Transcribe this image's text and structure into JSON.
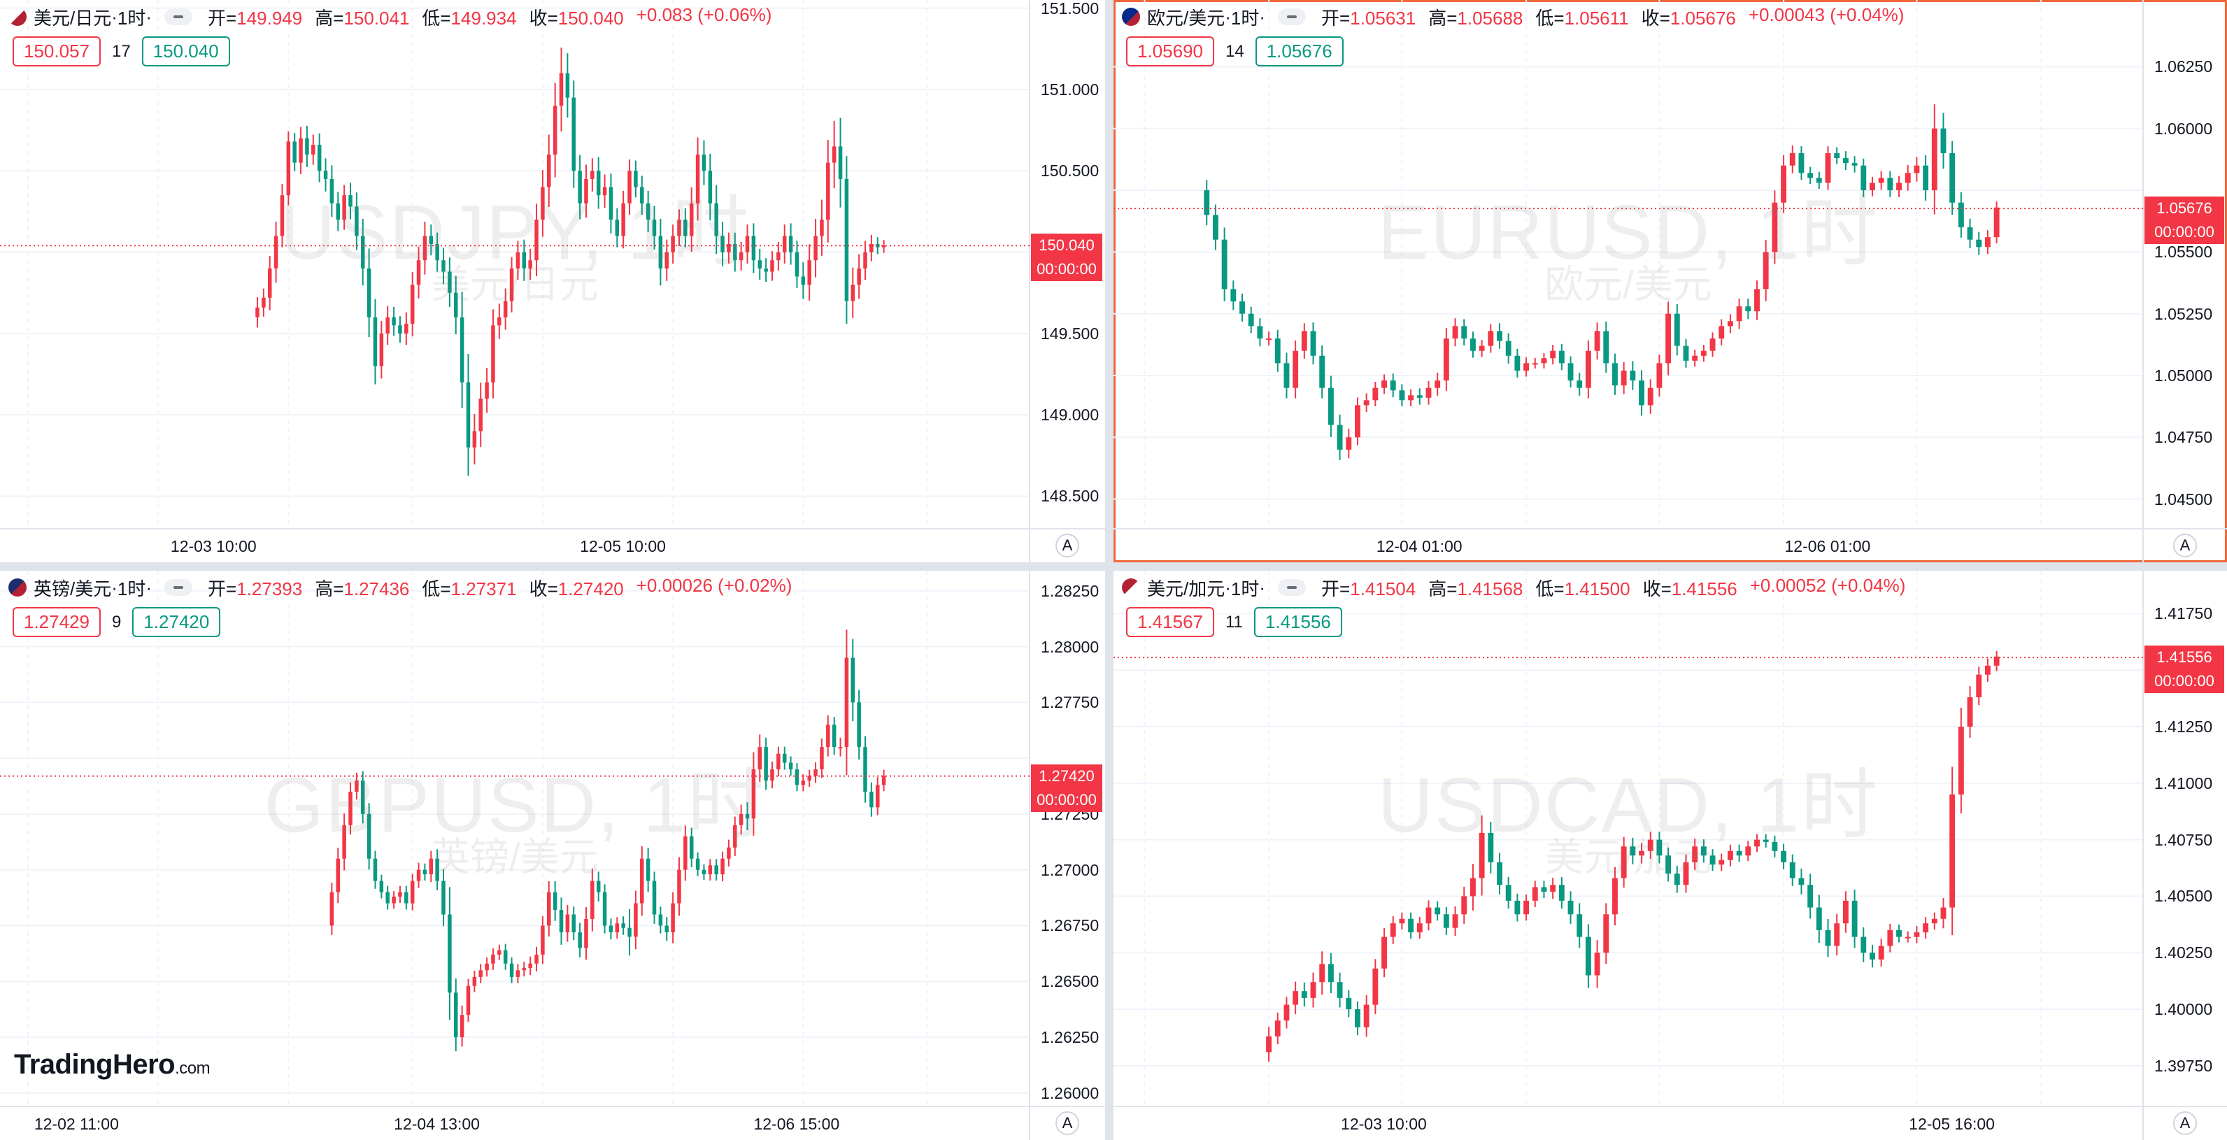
{
  "charts": [
    {
      "id": "usdjpy",
      "name": "美元/日元",
      "interval": "1时",
      "flag": "us-jp-flag",
      "open_label": "开=",
      "open": "149.949",
      "high_label": "高=",
      "high": "150.041",
      "low_label": "低=",
      "low": "149.934",
      "close_label": "收=",
      "close": "150.040",
      "change": "+0.083 (+0.06%)",
      "bid": "150.057",
      "spread": "17",
      "ask": "150.040",
      "watermark": "USDJPY, 1时",
      "watermark_sub": "美元/日元",
      "last_price": "150.040",
      "countdown": "00:00:00",
      "auto_label": "A",
      "chart_data": {
        "type": "candlestick",
        "ylim": [
          148.3,
          151.55
        ],
        "yticks": [
          "148.500",
          "149.000",
          "149.500",
          "150.000",
          "150.500",
          "151.000",
          "151.500"
        ],
        "x_labels": [
          {
            "i": 34,
            "label": "12-03 10:00"
          },
          {
            "i": 100,
            "label": "12-05 10:00"
          }
        ],
        "bars": 166,
        "last_price": 150.04,
        "closes": [
          149.66,
          149.72,
          149.9,
          150.1,
          150.35,
          150.68,
          150.55,
          150.7,
          150.6,
          150.66,
          150.5,
          150.45,
          150.3,
          150.2,
          150.35,
          150.28,
          150.1,
          149.9,
          149.6,
          149.3,
          149.5,
          149.6,
          149.55,
          149.5,
          149.56,
          149.8,
          149.95,
          150.1,
          150.05,
          149.95,
          149.88,
          149.75,
          149.6,
          149.2,
          148.8,
          148.9,
          149.1,
          149.2,
          149.55,
          149.6,
          149.7,
          149.9,
          150.0,
          149.9,
          149.95,
          150.2,
          150.4,
          150.6,
          150.9,
          151.1,
          150.95,
          150.5,
          150.3,
          150.45,
          150.5,
          150.35,
          150.4,
          150.2,
          150.1,
          150.3,
          150.5,
          150.4,
          150.3,
          150.2,
          150.1,
          149.9,
          150.0,
          150.1,
          150.2,
          150.1,
          150.3,
          150.6,
          150.5,
          150.3,
          150.1,
          150.0,
          150.05,
          149.95,
          150.0,
          150.1,
          149.95,
          149.9,
          149.88,
          149.95,
          150.0,
          150.1,
          150.0,
          149.85,
          149.8,
          149.95,
          150.1,
          150.2,
          150.55,
          150.65,
          150.45,
          149.7,
          149.8,
          149.9,
          150.0,
          150.05,
          150.03,
          150.04
        ],
        "range": [
          0.18,
          0.16,
          0.22,
          0.25,
          0.2,
          0.18,
          0.15,
          0.2,
          0.22,
          0.18,
          0.2,
          0.22,
          0.24,
          0.2,
          0.18,
          0.22,
          0.25,
          0.3,
          0.35,
          0.32,
          0.22,
          0.2,
          0.18,
          0.16,
          0.2,
          0.22,
          0.24,
          0.25,
          0.2,
          0.2,
          0.22,
          0.25,
          0.3,
          0.45,
          0.5,
          0.3,
          0.28,
          0.25,
          0.28,
          0.24,
          0.22,
          0.2,
          0.2,
          0.22,
          0.2,
          0.28,
          0.3,
          0.35,
          0.4,
          0.45,
          0.35,
          0.3,
          0.28,
          0.25,
          0.22,
          0.24,
          0.22,
          0.24,
          0.2,
          0.22,
          0.2,
          0.18,
          0.2,
          0.22,
          0.24,
          0.3,
          0.22,
          0.2,
          0.18,
          0.2,
          0.28,
          0.3,
          0.25,
          0.3,
          0.32,
          0.25,
          0.2,
          0.2,
          0.18,
          0.2,
          0.22,
          0.2,
          0.18,
          0.16,
          0.18,
          0.2,
          0.22,
          0.2,
          0.25,
          0.28,
          0.3,
          0.35,
          0.4,
          0.45,
          0.5,
          0.4,
          0.3,
          0.25,
          0.2,
          0.16,
          0.12,
          0.1
        ]
      }
    },
    {
      "id": "eurusd",
      "name": "欧元/美元",
      "interval": "1时",
      "flag": "eu-us-flag",
      "open_label": "开=",
      "open": "1.05631",
      "high_label": "高=",
      "high": "1.05688",
      "low_label": "低=",
      "low": "1.05611",
      "close_label": "收=",
      "close": "1.05676",
      "change": "+0.00043 (+0.04%)",
      "bid": "1.05690",
      "spread": "14",
      "ask": "1.05676",
      "watermark": "EURUSD, 1时",
      "watermark_sub": "欧元/美元",
      "last_price": "1.05676",
      "countdown": "00:00:00",
      "auto_label": "A",
      "chart_data": {
        "type": "candlestick",
        "ylim": [
          1.0438,
          1.0652
        ],
        "yticks": [
          "1.04500",
          "1.04750",
          "1.05000",
          "1.05250",
          "1.05500",
          "1.05750",
          "1.06000",
          "1.06250"
        ],
        "x_labels": [
          {
            "i": 34,
            "label": "12-04 01:00"
          },
          {
            "i": 80,
            "label": "12-06 01:00"
          }
        ],
        "bars": 116,
        "last_price": 1.05676,
        "closes": [
          1.0565,
          1.0555,
          1.0535,
          1.053,
          1.0525,
          1.052,
          1.0515,
          1.0515,
          1.0505,
          1.0495,
          1.051,
          1.0518,
          1.0508,
          1.0495,
          1.048,
          1.047,
          1.0475,
          1.0488,
          1.049,
          1.0495,
          1.0498,
          1.0494,
          1.049,
          1.0492,
          1.0491,
          1.0495,
          1.0498,
          1.0515,
          1.052,
          1.0515,
          1.051,
          1.0512,
          1.0518,
          1.0514,
          1.0508,
          1.0502,
          1.0505,
          1.0505,
          1.0507,
          1.051,
          1.0505,
          1.0498,
          1.0495,
          1.051,
          1.0518,
          1.0505,
          1.0496,
          1.0502,
          1.0498,
          1.0488,
          1.0495,
          1.0505,
          1.0525,
          1.0512,
          1.0506,
          1.0508,
          1.051,
          1.0515,
          1.052,
          1.0522,
          1.0528,
          1.0526,
          1.0535,
          1.055,
          1.057,
          1.0585,
          1.059,
          1.0582,
          1.058,
          1.0578,
          1.059,
          1.0588,
          1.0586,
          1.0585,
          1.0575,
          1.0578,
          1.058,
          1.0575,
          1.0578,
          1.0582,
          1.0585,
          1.0575,
          1.06,
          1.059,
          1.057,
          1.056,
          1.0555,
          1.0552,
          1.0556,
          1.0568
        ],
        "range": [
          0.0012,
          0.0012,
          0.0014,
          0.001,
          0.0009,
          0.0008,
          0.0009,
          0.0008,
          0.001,
          0.0012,
          0.0012,
          0.0009,
          0.001,
          0.0012,
          0.0014,
          0.0012,
          0.001,
          0.0009,
          0.0008,
          0.0007,
          0.0007,
          0.0008,
          0.0007,
          0.0007,
          0.0008,
          0.0008,
          0.0009,
          0.0012,
          0.0009,
          0.0008,
          0.0008,
          0.0007,
          0.0008,
          0.0009,
          0.0009,
          0.0008,
          0.0007,
          0.0006,
          0.0006,
          0.0007,
          0.0008,
          0.0008,
          0.0009,
          0.0012,
          0.001,
          0.0011,
          0.0011,
          0.001,
          0.0011,
          0.0012,
          0.001,
          0.001,
          0.0014,
          0.0011,
          0.0008,
          0.0007,
          0.0007,
          0.0007,
          0.0008,
          0.0008,
          0.0009,
          0.0009,
          0.001,
          0.0014,
          0.0014,
          0.0012,
          0.0009,
          0.0008,
          0.0007,
          0.0007,
          0.0008,
          0.0007,
          0.0008,
          0.0008,
          0.0008,
          0.0007,
          0.0008,
          0.0008,
          0.0008,
          0.0009,
          0.001,
          0.0012,
          0.0028,
          0.0018,
          0.0014,
          0.0012,
          0.001,
          0.0009,
          0.0008,
          0.0007
        ]
      }
    },
    {
      "id": "gbpusd",
      "name": "英镑/美元",
      "interval": "1时",
      "flag": "uk-us-flag",
      "open_label": "开=",
      "open": "1.27393",
      "high_label": "高=",
      "high": "1.27436",
      "low_label": "低=",
      "low": "1.27371",
      "close_label": "收=",
      "close": "1.27420",
      "change": "+0.00026 (+0.02%)",
      "bid": "1.27429",
      "spread": "9",
      "ask": "1.27420",
      "watermark": "GBPUSD, 1时",
      "watermark_sub": "英镑/美元",
      "last_price": "1.27420",
      "countdown": "00:00:00",
      "auto_label": "A",
      "chart_data": {
        "type": "candlestick",
        "ylim": [
          1.2594,
          1.2834
        ],
        "yticks": [
          "1.26000",
          "1.26250",
          "1.26500",
          "1.26750",
          "1.27000",
          "1.27250",
          "1.27500",
          "1.27750",
          "1.28000",
          "1.28250"
        ],
        "x_labels": [
          {
            "i": 12,
            "label": "12-02 11:00"
          },
          {
            "i": 70,
            "label": "12-04 13:00"
          },
          {
            "i": 128,
            "label": "12-06 15:00"
          }
        ],
        "bars": 166,
        "last_price": 1.2742,
        "closes": [
          1.269,
          1.2705,
          1.272,
          1.2735,
          1.274,
          1.2725,
          1.2705,
          1.2695,
          1.269,
          1.2685,
          1.2688,
          1.269,
          1.2685,
          1.2695,
          1.27,
          1.2698,
          1.2705,
          1.2695,
          1.268,
          1.2645,
          1.2625,
          1.2635,
          1.2648,
          1.2652,
          1.2655,
          1.2658,
          1.2662,
          1.2664,
          1.2658,
          1.2652,
          1.2655,
          1.2656,
          1.2658,
          1.2662,
          1.2675,
          1.269,
          1.2682,
          1.2672,
          1.268,
          1.2672,
          1.2665,
          1.2678,
          1.2695,
          1.269,
          1.2675,
          1.2672,
          1.2676,
          1.2674,
          1.267,
          1.2685,
          1.2705,
          1.2695,
          1.268,
          1.2675,
          1.2672,
          1.2685,
          1.27,
          1.2715,
          1.2705,
          1.27,
          1.2698,
          1.2702,
          1.2698,
          1.2705,
          1.271,
          1.272,
          1.2725,
          1.2723,
          1.2745,
          1.2755,
          1.274,
          1.2745,
          1.2752,
          1.2748,
          1.2745,
          1.2738,
          1.274,
          1.2742,
          1.2745,
          1.2755,
          1.2765,
          1.2755,
          1.2755,
          1.2795,
          1.2775,
          1.2755,
          1.2735,
          1.2728,
          1.2738,
          1.2742
        ],
        "range": [
          0.0012,
          0.0014,
          0.0015,
          0.0012,
          0.001,
          0.0012,
          0.0014,
          0.001,
          0.0008,
          0.0008,
          0.0007,
          0.0008,
          0.0008,
          0.0009,
          0.0009,
          0.0008,
          0.001,
          0.0012,
          0.0015,
          0.0035,
          0.0018,
          0.0012,
          0.0009,
          0.0008,
          0.0008,
          0.0008,
          0.0008,
          0.0007,
          0.0008,
          0.0008,
          0.0008,
          0.0008,
          0.0009,
          0.001,
          0.0012,
          0.0014,
          0.0014,
          0.0016,
          0.0012,
          0.001,
          0.0012,
          0.0015,
          0.0016,
          0.0012,
          0.001,
          0.0009,
          0.0008,
          0.0009,
          0.0024,
          0.0016,
          0.0016,
          0.0014,
          0.0012,
          0.001,
          0.0011,
          0.0014,
          0.0016,
          0.0014,
          0.0011,
          0.0008,
          0.0007,
          0.0008,
          0.0008,
          0.0009,
          0.001,
          0.0011,
          0.0012,
          0.0015,
          0.0022,
          0.0016,
          0.0012,
          0.001,
          0.0009,
          0.0009,
          0.0008,
          0.0008,
          0.0008,
          0.0008,
          0.0009,
          0.0011,
          0.0012,
          0.001,
          0.0012,
          0.0036,
          0.0024,
          0.0016,
          0.0014,
          0.0012,
          0.001,
          0.0008
        ]
      }
    },
    {
      "id": "usdcad",
      "name": "美元/加元",
      "interval": "1时",
      "flag": "us-ca-flag",
      "open_label": "开=",
      "open": "1.41504",
      "high_label": "高=",
      "high": "1.41568",
      "low_label": "低=",
      "low": "1.41500",
      "close_label": "收=",
      "close": "1.41556",
      "change": "+0.00052 (+0.04%)",
      "bid": "1.41567",
      "spread": "11",
      "ask": "1.41556",
      "watermark": "USDCAD, 1时",
      "watermark_sub": "美元/加元",
      "last_price": "1.41556",
      "countdown": "00:00:00",
      "auto_label": "A",
      "chart_data": {
        "type": "candlestick",
        "ylim": [
          1.3957,
          1.4194
        ],
        "yticks": [
          "1.39750",
          "1.40000",
          "1.40250",
          "1.40500",
          "1.40750",
          "1.41000",
          "1.41250",
          "1.41500",
          "1.41750"
        ],
        "x_labels": [
          {
            "i": 30,
            "label": "12-03 10:00"
          },
          {
            "i": 94,
            "label": "12-05 16:00"
          }
        ],
        "bars": 116,
        "last_price": 1.41556,
        "closes": [
          1.3988,
          1.3995,
          1.4002,
          1.4008,
          1.4005,
          1.4012,
          1.402,
          1.4012,
          1.4005,
          1.4,
          1.3992,
          1.4002,
          1.4018,
          1.4032,
          1.4038,
          1.404,
          1.4034,
          1.4038,
          1.4045,
          1.4042,
          1.4036,
          1.4042,
          1.405,
          1.4058,
          1.4078,
          1.4065,
          1.4055,
          1.4048,
          1.4042,
          1.4048,
          1.4054,
          1.4052,
          1.4055,
          1.4048,
          1.4042,
          1.4032,
          1.4015,
          1.4025,
          1.4042,
          1.4058,
          1.4072,
          1.4068,
          1.407,
          1.4075,
          1.4068,
          1.406,
          1.4055,
          1.4065,
          1.4072,
          1.4068,
          1.4064,
          1.4066,
          1.407,
          1.4068,
          1.4072,
          1.4075,
          1.4074,
          1.407,
          1.4065,
          1.4058,
          1.4055,
          1.4045,
          1.4035,
          1.4028,
          1.4038,
          1.4048,
          1.4032,
          1.4025,
          1.4022,
          1.4028,
          1.4035,
          1.4032,
          1.4032,
          1.4034,
          1.4038,
          1.404,
          1.4045,
          1.4095,
          1.4125,
          1.4138,
          1.4148,
          1.4152,
          1.4156
        ],
        "range": [
          0.0012,
          0.001,
          0.001,
          0.0012,
          0.0011,
          0.0012,
          0.0016,
          0.0014,
          0.0012,
          0.001,
          0.001,
          0.0012,
          0.0012,
          0.0011,
          0.0009,
          0.0008,
          0.0008,
          0.0008,
          0.0009,
          0.0008,
          0.0009,
          0.001,
          0.0012,
          0.0018,
          0.0022,
          0.0014,
          0.0012,
          0.001,
          0.0009,
          0.0008,
          0.0008,
          0.0008,
          0.0009,
          0.001,
          0.0012,
          0.0014,
          0.0016,
          0.0016,
          0.0014,
          0.0014,
          0.0012,
          0.0011,
          0.001,
          0.001,
          0.001,
          0.001,
          0.001,
          0.001,
          0.001,
          0.0009,
          0.0008,
          0.0008,
          0.0008,
          0.0008,
          0.0007,
          0.0007,
          0.0007,
          0.0008,
          0.0009,
          0.001,
          0.0012,
          0.0014,
          0.0016,
          0.0014,
          0.0012,
          0.0012,
          0.0014,
          0.0012,
          0.001,
          0.0009,
          0.0008,
          0.0007,
          0.0007,
          0.0008,
          0.0008,
          0.0008,
          0.0012,
          0.0035,
          0.0024,
          0.0014,
          0.001,
          0.0009,
          0.0007
        ]
      }
    }
  ],
  "brand": {
    "name": "TradingHero",
    "suffix": ".com"
  },
  "colors": {
    "up": "#f23645",
    "down": "#089981",
    "grid": "#f0f3fa",
    "accent_border": "#f0683a"
  }
}
